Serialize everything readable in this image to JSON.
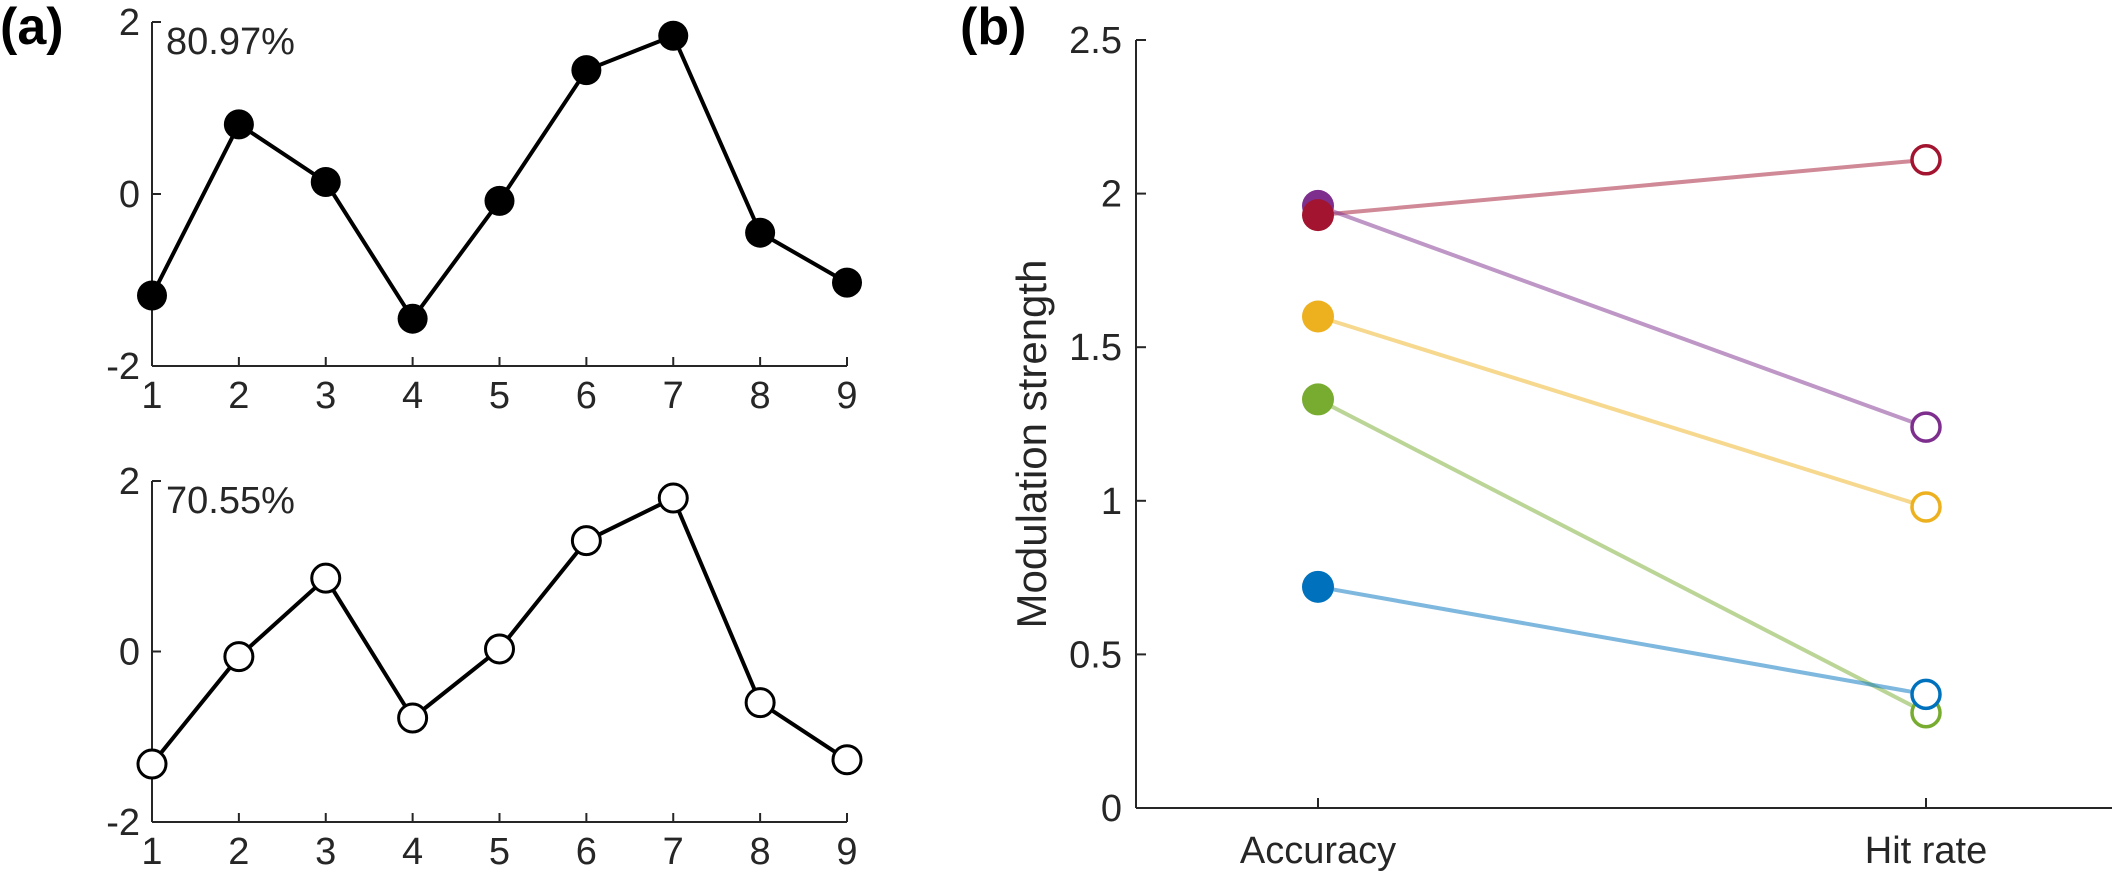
{
  "figure": {
    "panel_a_label": "(a)",
    "panel_b_label": "(b)"
  },
  "chart_data": [
    {
      "type": "line",
      "panel": "(a) top",
      "annotation": "80.97%",
      "marker": "filled",
      "x": [
        1,
        2,
        3,
        4,
        5,
        6,
        7,
        8,
        9
      ],
      "y": [
        -1.18,
        0.81,
        0.14,
        -1.45,
        -0.08,
        1.44,
        1.84,
        -0.45,
        -1.03
      ],
      "xlim": [
        1,
        9
      ],
      "ylim": [
        -2,
        2
      ],
      "xticks": [
        "1",
        "2",
        "3",
        "4",
        "5",
        "6",
        "7",
        "8",
        "9"
      ],
      "yticks": [
        "-2",
        "0",
        "2"
      ],
      "grid": false
    },
    {
      "type": "line",
      "panel": "(a) bottom",
      "annotation": "70.55%",
      "marker": "open",
      "x": [
        1,
        2,
        3,
        4,
        5,
        6,
        7,
        8,
        9
      ],
      "y": [
        -1.32,
        -0.06,
        0.86,
        -0.78,
        0.03,
        1.3,
        1.8,
        -0.6,
        -1.27
      ],
      "xlim": [
        1,
        9
      ],
      "ylim": [
        -2,
        2
      ],
      "xticks": [
        "1",
        "2",
        "3",
        "4",
        "5",
        "6",
        "7",
        "8",
        "9"
      ],
      "yticks": [
        "-2",
        "0",
        "2"
      ],
      "grid": false
    },
    {
      "type": "line",
      "panel": "(b)",
      "categories": [
        "Accuracy",
        "Hit rate"
      ],
      "ylabel": "Modulation strength",
      "ylim": [
        0,
        2.5
      ],
      "yticks": [
        "0",
        "0.5",
        "1",
        "1.5",
        "2",
        "2.5"
      ],
      "grid": false,
      "series": [
        {
          "color": "#A2142F",
          "values": [
            1.93,
            2.11
          ]
        },
        {
          "color": "#7E2F8E",
          "values": [
            1.96,
            1.24
          ]
        },
        {
          "color": "#EDB120",
          "values": [
            1.6,
            0.98
          ]
        },
        {
          "color": "#77AC30",
          "values": [
            1.33,
            0.31
          ]
        },
        {
          "color": "#0072BD",
          "values": [
            0.72,
            0.37
          ]
        }
      ]
    }
  ]
}
